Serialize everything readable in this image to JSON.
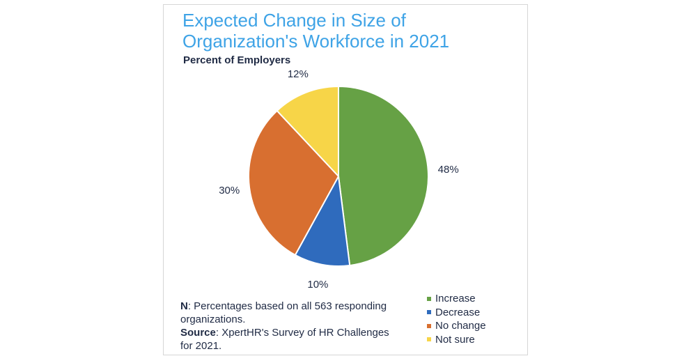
{
  "chart_data": {
    "type": "pie",
    "title": "Expected Change in Size of Organization's Workforce in 2021",
    "subtitle": "Percent of Employers",
    "categories": [
      "Increase",
      "Decrease",
      "No change",
      "Not sure"
    ],
    "values": [
      48,
      10,
      30,
      12
    ],
    "data_labels": [
      "48%",
      "10%",
      "30%",
      "12%"
    ],
    "colors": [
      "#66a145",
      "#2f6bbd",
      "#d86f30",
      "#f7d548"
    ],
    "legend_placement": "bottom-right",
    "start_angle": "top, clockwise"
  },
  "notes": {
    "n_label": "N",
    "n_text": ": Percentages based on all 563 responding organizations.",
    "source_label": "Source",
    "source_text": ": XpertHR's Survey of HR Challenges for 2021."
  }
}
